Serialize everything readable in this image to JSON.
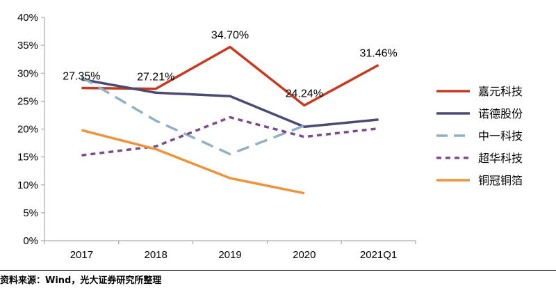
{
  "chart_data": {
    "type": "line",
    "title": "",
    "xlabel": "",
    "ylabel": "",
    "categories": [
      "2017",
      "2018",
      "2019",
      "2020",
      "2021Q1"
    ],
    "y_ticks": [
      "0%",
      "5%",
      "10%",
      "15%",
      "20%",
      "25%",
      "30%",
      "35%",
      "40%"
    ],
    "ylim": [
      0,
      40
    ],
    "grid": false,
    "legend_position": "right",
    "series": [
      {
        "name": "嘉元科技",
        "color": "#c8391f",
        "dash": "solid",
        "values": [
          27.35,
          27.21,
          34.7,
          24.24,
          31.46
        ],
        "labels": [
          "27.35%",
          "27.21%",
          "34.70%",
          "24.24%",
          "31.46%"
        ]
      },
      {
        "name": "诺德股份",
        "color": "#4b4a72",
        "dash": "solid",
        "values": [
          28.9,
          26.5,
          25.9,
          20.4,
          21.7
        ]
      },
      {
        "name": "中一科技",
        "color": "#8fb0c6",
        "dash": "long-dash",
        "values": [
          29.3,
          21.5,
          15.5,
          20.6,
          null
        ]
      },
      {
        "name": "超华科技",
        "color": "#7b4b8a",
        "dash": "short-dash",
        "values": [
          15.3,
          16.9,
          22.1,
          18.6,
          20.1
        ]
      },
      {
        "name": "铜冠铜箔",
        "color": "#f0923a",
        "dash": "solid",
        "values": [
          19.8,
          16.4,
          11.2,
          8.5,
          null
        ]
      }
    ]
  },
  "source_text": "资料来源：Wind，光大证券研究所整理"
}
